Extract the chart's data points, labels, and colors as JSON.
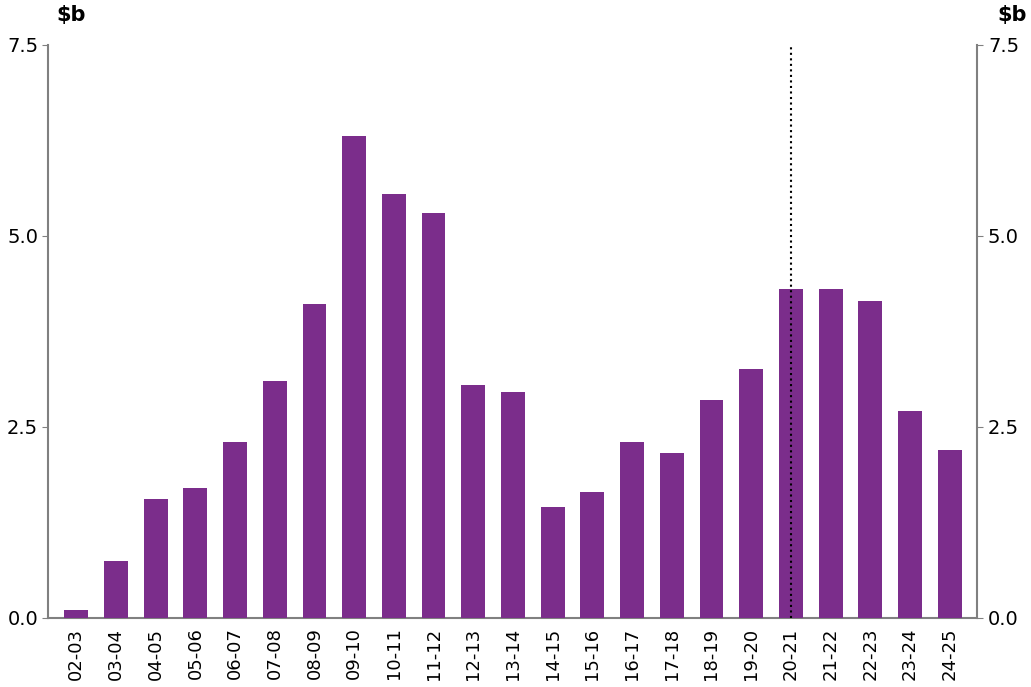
{
  "categories": [
    "02-03",
    "03-04",
    "04-05",
    "05-06",
    "06-07",
    "07-08",
    "08-09",
    "09-10",
    "10-11",
    "11-12",
    "12-13",
    "13-14",
    "14-15",
    "15-16",
    "16-17",
    "17-18",
    "18-19",
    "19-20",
    "20-21",
    "21-22",
    "22-23",
    "23-24",
    "24-25"
  ],
  "values": [
    0.1,
    0.75,
    1.55,
    1.7,
    2.3,
    3.1,
    4.1,
    6.3,
    5.55,
    5.3,
    3.05,
    2.95,
    1.45,
    1.65,
    2.3,
    2.15,
    2.85,
    3.25,
    4.3,
    4.3,
    4.15,
    2.7,
    2.2
  ],
  "bar_color": "#7B2D8B",
  "ylim": [
    0,
    7.5
  ],
  "yticks": [
    0.0,
    2.5,
    5.0,
    7.5
  ],
  "dotted_line_x": 18,
  "background_color": "#ffffff",
  "axis_color": "#808080"
}
